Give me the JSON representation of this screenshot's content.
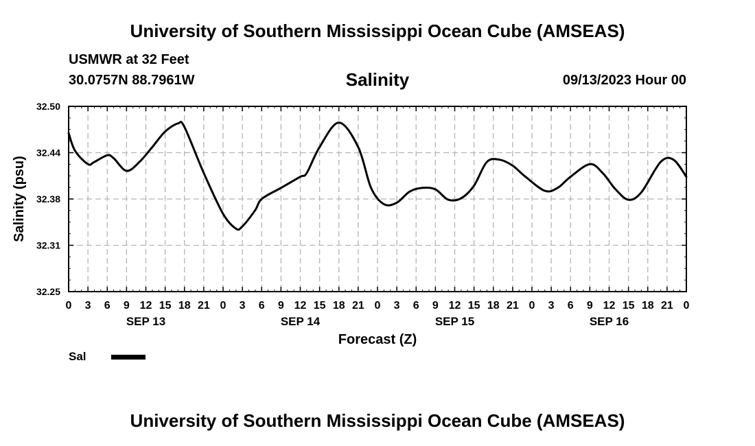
{
  "header": {
    "title": "University of Southern Mississippi Ocean Cube (AMSEAS)",
    "station": "USMWR at 32 Feet",
    "coords": "30.0757N  88.7961W",
    "param": "Salinity",
    "datetime": "09/13/2023 Hour 00"
  },
  "footer": {
    "title": "University of Southern Mississippi Ocean Cube (AMSEAS)"
  },
  "legend": {
    "label": "Sal",
    "color": "#000000"
  },
  "chart_data": {
    "type": "line",
    "title": "Salinity",
    "xlabel": "Forecast (Z)",
    "ylabel": "Salinity (psu)",
    "xlim": [
      0,
      96
    ],
    "ylim": [
      32.25,
      32.5
    ],
    "yticks": [
      "32.25",
      "32.31",
      "32.38",
      "32.44",
      "32.50"
    ],
    "ytick_values": [
      32.25,
      32.3125,
      32.375,
      32.4375,
      32.5
    ],
    "xtick_hours": [
      0,
      3,
      6,
      9,
      12,
      15,
      18,
      21,
      24,
      27,
      30,
      33,
      36,
      39,
      42,
      45,
      48,
      51,
      54,
      57,
      60,
      63,
      66,
      69,
      72,
      75,
      78,
      81,
      84,
      87,
      90,
      93,
      96
    ],
    "xtick_labels": [
      "0",
      "3",
      "6",
      "9",
      "12",
      "15",
      "18",
      "21",
      "0",
      "3",
      "6",
      "9",
      "12",
      "15",
      "18",
      "21",
      "0",
      "3",
      "6",
      "9",
      "12",
      "15",
      "18",
      "21",
      "0",
      "3",
      "6",
      "9",
      "12",
      "15",
      "18",
      "21",
      "0"
    ],
    "date_labels": [
      {
        "label": "SEP 13",
        "hour": 12
      },
      {
        "label": "SEP 14",
        "hour": 36
      },
      {
        "label": "SEP 15",
        "hour": 60
      },
      {
        "label": "SEP 16",
        "hour": 84
      }
    ],
    "grid": true,
    "series": [
      {
        "name": "Sal",
        "x": [
          0,
          1,
          3,
          4,
          6,
          7,
          9,
          11,
          13,
          15,
          17,
          18,
          21,
          24,
          26,
          27,
          29,
          30,
          33,
          36,
          37,
          39,
          42,
          45,
          47,
          49,
          51,
          53,
          55,
          57,
          59,
          61,
          63,
          65,
          67,
          69,
          71,
          74,
          76,
          78,
          81,
          83,
          85,
          87,
          89,
          92,
          94,
          96
        ],
        "values": [
          32.464,
          32.44,
          32.422,
          32.425,
          32.434,
          32.43,
          32.413,
          32.425,
          32.445,
          32.466,
          32.477,
          32.472,
          32.41,
          32.355,
          32.335,
          32.338,
          32.36,
          32.375,
          32.39,
          32.405,
          32.41,
          32.445,
          32.478,
          32.445,
          32.39,
          32.368,
          32.37,
          32.385,
          32.39,
          32.388,
          32.374,
          32.376,
          32.393,
          32.425,
          32.428,
          32.42,
          32.405,
          32.386,
          32.39,
          32.405,
          32.422,
          32.41,
          32.388,
          32.374,
          32.384,
          32.425,
          32.428,
          32.405
        ]
      }
    ]
  }
}
